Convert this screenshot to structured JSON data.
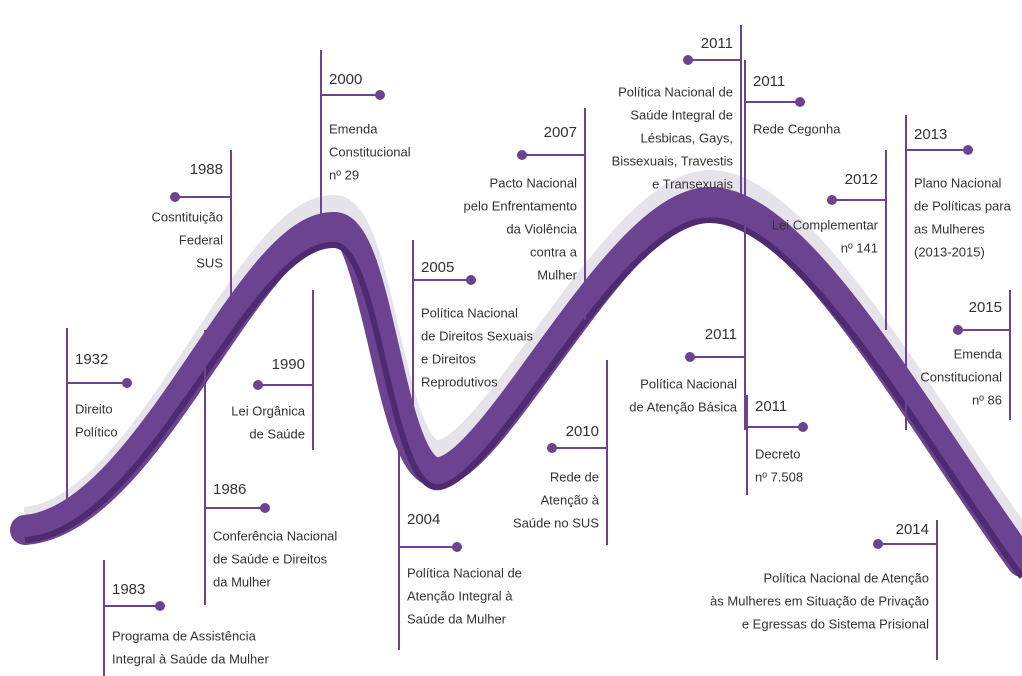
{
  "events": [
    {
      "year": "1932",
      "lines": [
        "Direito",
        "Político"
      ]
    },
    {
      "year": "1983",
      "lines": [
        "Programa de Assistência",
        "Integral à Saúde da Mulher"
      ]
    },
    {
      "year": "1986",
      "lines": [
        "Conferência Nacional",
        "de Saúde e Direitos",
        "da Mulher"
      ]
    },
    {
      "year": "1988",
      "lines": [
        "Cosntituição",
        "Federal",
        "SUS"
      ]
    },
    {
      "year": "1990",
      "lines": [
        "Lei Orgânica",
        "de Saúde"
      ]
    },
    {
      "year": "2000",
      "lines": [
        "Emenda",
        "Constitucional",
        "nº 29"
      ]
    },
    {
      "year": "2004",
      "lines": [
        "Política Nacional de",
        "Atenção Integral à",
        "Saúde da Mulher"
      ]
    },
    {
      "year": "2005",
      "lines": [
        "Política Nacional",
        "de Direitos Sexuais",
        "e Direitos",
        "Reprodutivos"
      ]
    },
    {
      "year": "2007",
      "lines": [
        "Pacto Nacional",
        "pelo Enfrentamento",
        "da Violência",
        "contra a",
        "Mulher"
      ]
    },
    {
      "year": "2010",
      "lines": [
        "Rede de",
        "Atenção à",
        "Saúde no SUS"
      ]
    },
    {
      "year": "2011",
      "lines": [
        "Política Nacional de",
        "Saúde Integral de",
        "Lésbicas, Gays,",
        "Bissexuais, Travestis",
        "e Transexuais"
      ]
    },
    {
      "year": "2011",
      "lines": [
        "Rede Cegonha"
      ]
    },
    {
      "year": "2011",
      "lines": [
        "Política Nacional",
        "de Atenção Básica"
      ]
    },
    {
      "year": "2011",
      "lines": [
        "Decreto",
        "nº 7.508"
      ]
    },
    {
      "year": "2012",
      "lines": [
        "Lei Complementar",
        "nº 141"
      ]
    },
    {
      "year": "2013",
      "lines": [
        "Plano Nacional",
        "de Políticas para",
        "as Mulheres",
        "(2013-2015)"
      ]
    },
    {
      "year": "2014",
      "lines": [
        "Política Nacional de Atenção",
        "às Mulheres em Situação de Privação",
        "e Egressas do Sistema Prisional"
      ]
    },
    {
      "year": "2015",
      "lines": [
        "Emenda",
        "Constitucional",
        "nº 86"
      ]
    }
  ]
}
